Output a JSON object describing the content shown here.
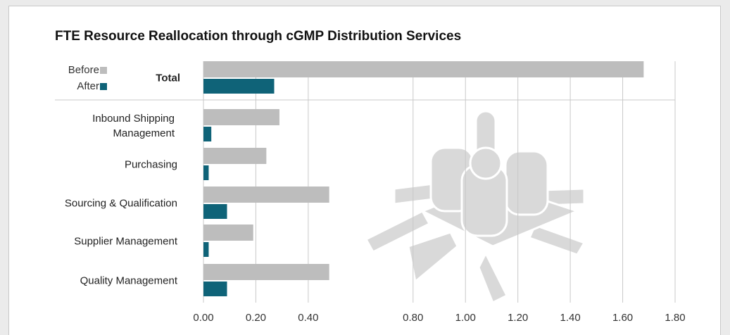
{
  "chart_data": {
    "type": "hbar",
    "title": "FTE Resource Reallocation through cGMP Distribution Services",
    "categories": [
      "Total",
      "Inbound Shipping Management",
      "Purchasing",
      "Sourcing & Qualification",
      "Supplier Management",
      "Quality Management"
    ],
    "series": [
      {
        "name": "Before",
        "color": "#bdbdbd",
        "values": [
          1.68,
          0.29,
          0.24,
          0.48,
          0.19,
          0.48
        ]
      },
      {
        "name": "After",
        "color": "#0f6378",
        "values": [
          0.27,
          0.03,
          0.02,
          0.09,
          0.02,
          0.09
        ]
      }
    ],
    "xlim": [
      0,
      1.8
    ],
    "xticks": [
      {
        "value": 0,
        "label": "0.00"
      },
      {
        "value": 0.2,
        "label": "0.20"
      },
      {
        "value": 0.4,
        "label": "0.40"
      },
      {
        "value": 0.8,
        "label": "0.80"
      },
      {
        "value": 1.0,
        "label": "1.00"
      },
      {
        "value": 1.2,
        "label": "1.20"
      },
      {
        "value": 1.4,
        "label": "1.40"
      },
      {
        "value": 1.6,
        "label": "1.60"
      },
      {
        "value": 1.8,
        "label": "1.80"
      }
    ],
    "grid": true,
    "legend": "top-left"
  }
}
